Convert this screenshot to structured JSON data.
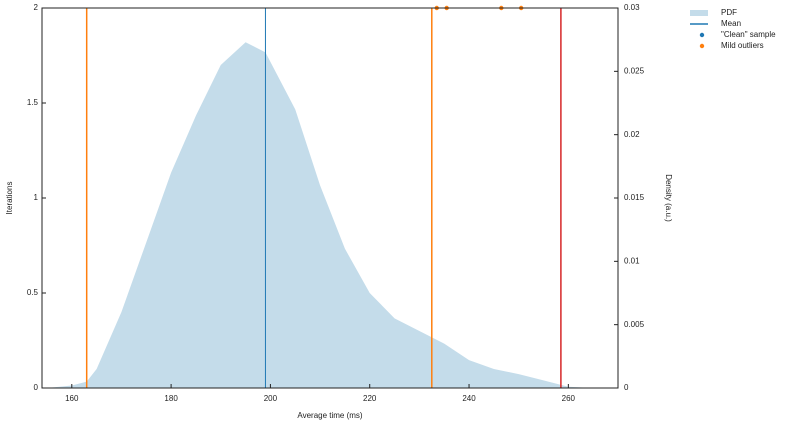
{
  "chart_data": {
    "type": "kde",
    "xlabel": "Average time (ms)",
    "ylabel": "Iterations",
    "y2label": "Density (a.u.)",
    "xlim": [
      154,
      270
    ],
    "xticks": [
      160,
      180,
      200,
      220,
      240,
      260
    ],
    "ylim": [
      0,
      2
    ],
    "yticks": [
      0,
      0.5,
      1,
      1.5,
      2
    ],
    "y2lim": [
      0,
      0.03
    ],
    "y2ticks": [
      0,
      0.005,
      0.01,
      0.015,
      0.02,
      0.025,
      0.03
    ],
    "series": [
      {
        "name": "PDF",
        "color": "#c4dcea",
        "axis": "y2",
        "x": [
          155,
          160,
          163,
          165,
          170,
          175,
          180,
          185,
          190,
          195,
          199,
          205,
          210,
          215,
          220,
          225,
          230,
          235,
          240,
          245,
          250,
          255,
          260,
          265
        ],
        "values": [
          0,
          0.0002,
          0.0005,
          0.0015,
          0.006,
          0.0115,
          0.017,
          0.0215,
          0.0255,
          0.0273,
          0.0265,
          0.022,
          0.016,
          0.011,
          0.0075,
          0.0055,
          0.0045,
          0.0035,
          0.0022,
          0.0015,
          0.0011,
          0.0006,
          0.0001,
          0
        ]
      },
      {
        "name": "Mean",
        "color": "#1f78b4",
        "x": [
          199
        ]
      },
      {
        "name": "\"Clean\" sample",
        "color": "#1f78b4",
        "x": [],
        "values": []
      },
      {
        "name": "Mild outliers",
        "color": "#ff7f0e",
        "x": [
          233.5,
          235.5,
          246.5,
          250.5
        ],
        "values": [
          2,
          2,
          2,
          2
        ]
      }
    ],
    "thresholds": [
      {
        "x": 163,
        "color": "#ff7f0e"
      },
      {
        "x": 232.5,
        "color": "#ff7f0e"
      },
      {
        "x": 258.5,
        "color": "#d62728"
      }
    ]
  }
}
